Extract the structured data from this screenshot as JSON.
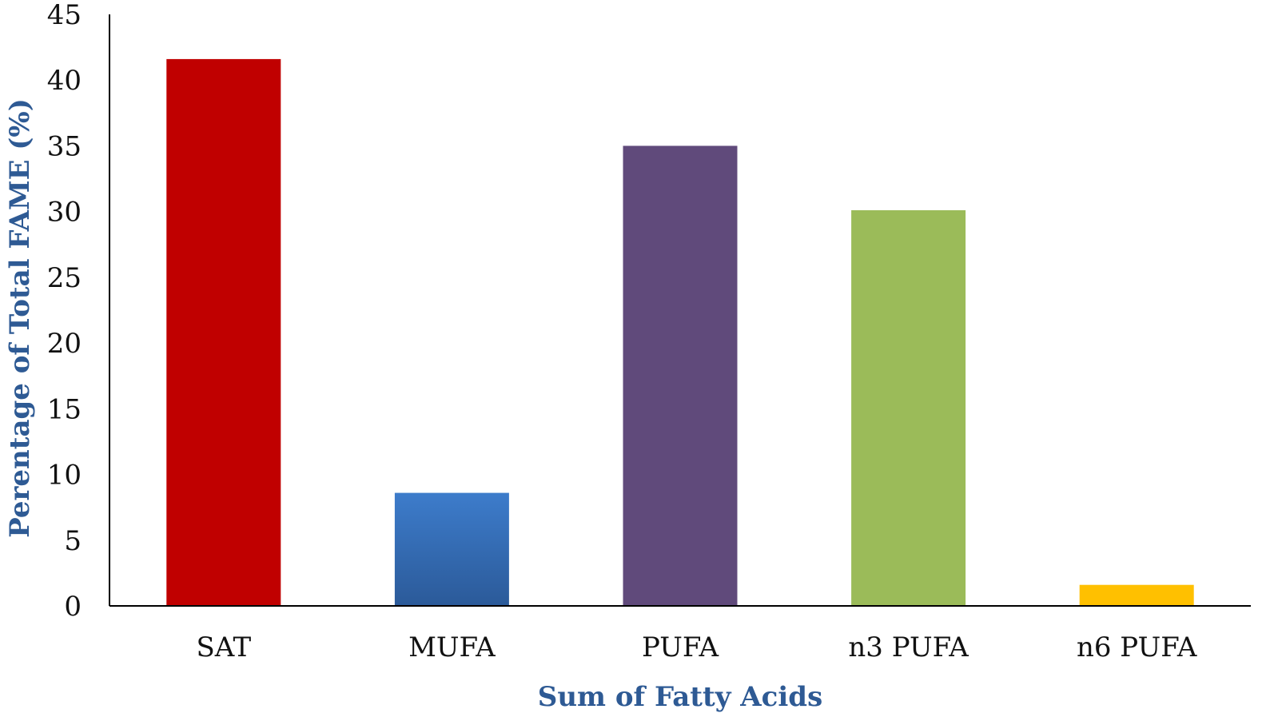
{
  "chart_data": {
    "type": "bar",
    "categories": [
      "SAT",
      "MUFA",
      "PUFA",
      "n3 PUFA",
      "n6 PUFA"
    ],
    "values": [
      41.6,
      8.6,
      35.0,
      30.1,
      1.6
    ],
    "colors": [
      "#c00000",
      "#3a78c6",
      "#604a7b",
      "#9bbb59",
      "#ffc000"
    ],
    "xlabel": "Sum of Fatty Acids",
    "ylabel": "Perentage of Total FAME (%)",
    "ylim": [
      0,
      45
    ],
    "yticks": [
      "0",
      "5",
      "10",
      "15",
      "20",
      "25",
      "30",
      "35",
      "40",
      "45"
    ],
    "axis_title_color": "#2e5a94",
    "grid": false,
    "legend": "none"
  }
}
